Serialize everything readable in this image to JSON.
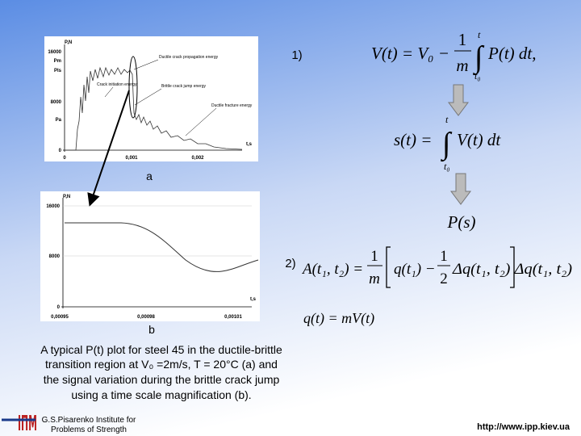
{
  "slide": {
    "figure_a": {
      "label": "a",
      "y_axis_title": "P,N",
      "y_labels": [
        "16000",
        "Pm",
        "Pls",
        "8000",
        "Pa",
        "0"
      ],
      "x_labels": [
        "0",
        "0,001",
        "0,002"
      ],
      "x_axis_title": "t,s",
      "annotations": [
        "Ductile crack propagation energy",
        "Crack initiation energy",
        "Brittle crack jump energy",
        "Ductile fracture energy"
      ]
    },
    "figure_b": {
      "label": "b",
      "y_axis_title": "P,N",
      "y_labels": [
        "16000",
        "8000",
        "0"
      ],
      "x_labels": [
        "0,00095",
        "0,00098",
        "0,00101"
      ],
      "x_axis_title": "t,s"
    },
    "step_labels": [
      "1)",
      "2)"
    ],
    "equations": {
      "velocity": {
        "lhs": "V(t) = V₀ −",
        "num": "1",
        "den": "m",
        "integral": "∫",
        "upper": "t",
        "lower": "t₀",
        "integrand": "P(t) dt,"
      },
      "displacement": {
        "lhs": "s(t) =",
        "integral": "∫",
        "upper": "t",
        "lower": "t₀",
        "integrand": "V(t) dt"
      },
      "load": "P(s)",
      "energy": {
        "lhs": "A(t₁, t₂) =",
        "num": "1",
        "den": "m",
        "body": "q(t₁) −",
        "num2": "1",
        "den2": "2",
        "tail": "Δq(t₁, t₂) Δq(t₁, t₂)"
      },
      "momentum": "q(t) = mV(t)"
    },
    "caption": [
      "A typical P(t) plot for steel 45 in the ductile-brittle",
      "transition region at V₀ =2m/s, T = 20°C (a) and",
      "the signal variation during the brittle crack jump",
      "using a time scale magnification (b)."
    ],
    "footer": {
      "logo": "ІПМ",
      "institute": [
        "G.S.Pisarenko Institute for",
        "Problems of Strength"
      ],
      "url": "http://www.ipp.kiev.ua"
    }
  }
}
